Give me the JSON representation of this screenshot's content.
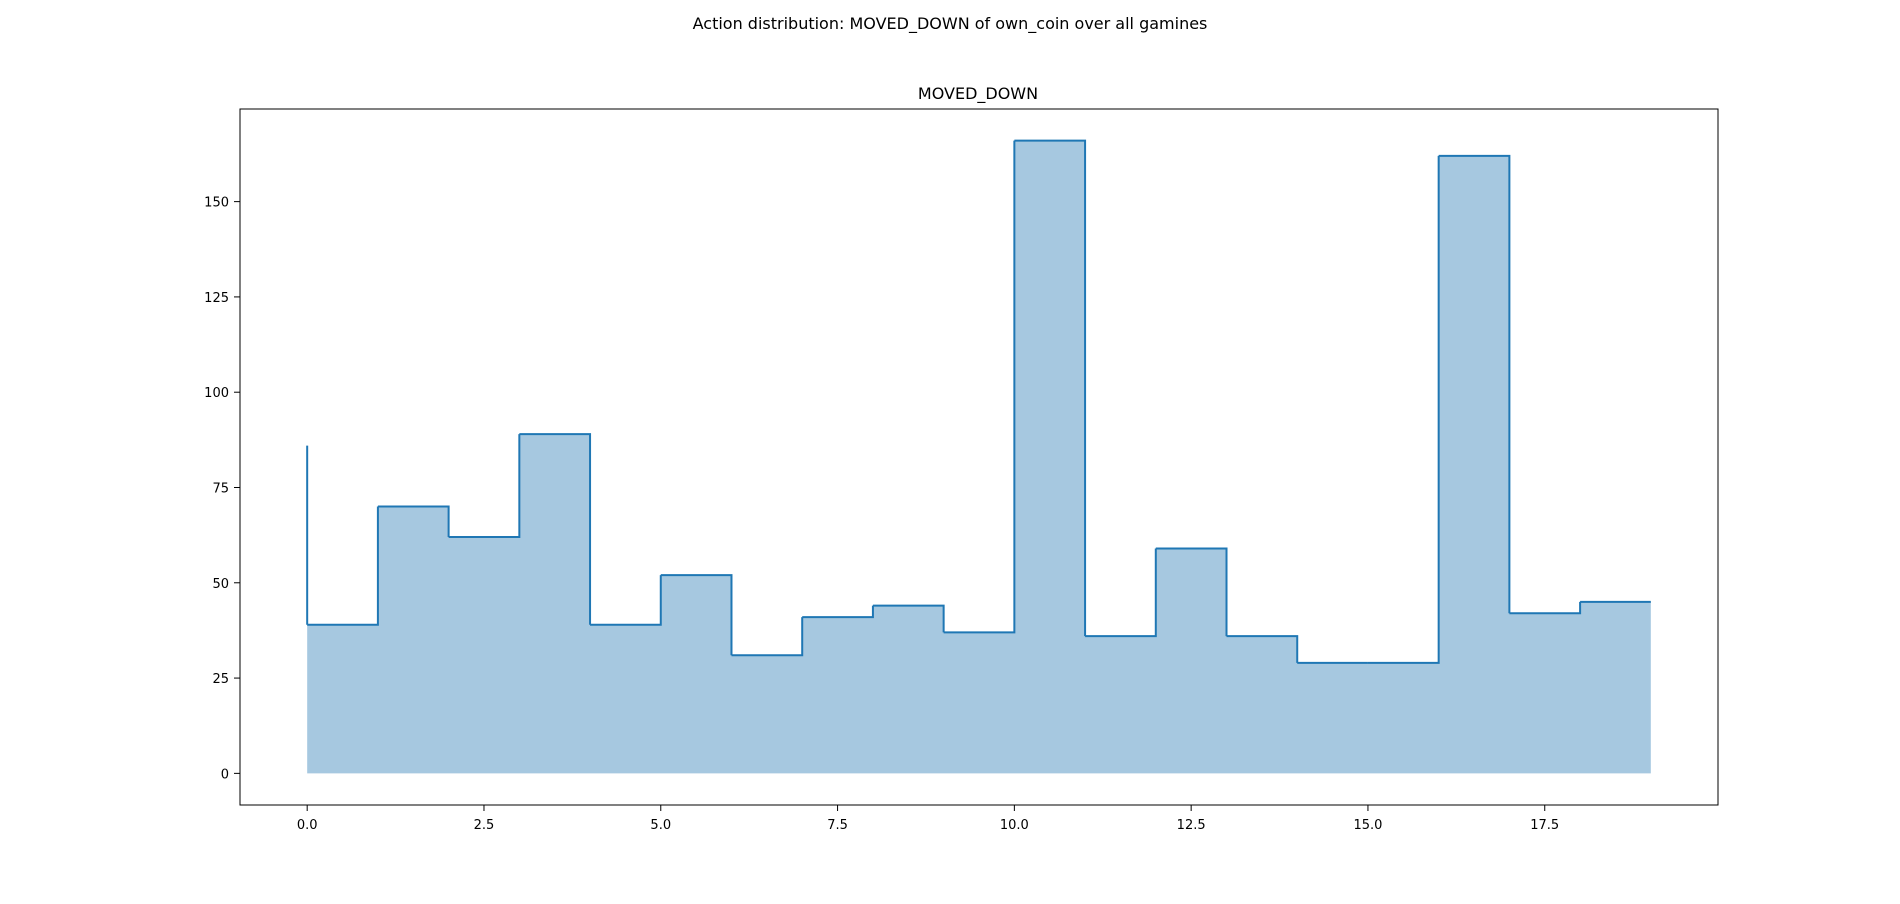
{
  "figure": {
    "suptitle": "Action distribution: MOVED_DOWN of own_coin over all gamines"
  },
  "chart_data": {
    "type": "area",
    "title": "MOVED_DOWN",
    "xlabel": "",
    "ylabel": "",
    "step": "post",
    "x": [
      0,
      1,
      2,
      3,
      4,
      5,
      6,
      7,
      8,
      9,
      10,
      11,
      12,
      13,
      14,
      15,
      16,
      17,
      18,
      19
    ],
    "values": [
      86,
      39,
      70,
      62,
      89,
      39,
      52,
      31,
      41,
      44,
      37,
      166,
      36,
      59,
      36,
      29,
      29,
      162,
      42,
      45
    ],
    "fill_from": 0,
    "xlim": [
      -0.95,
      19.95
    ],
    "ylim": [
      -8.3,
      174.3
    ],
    "xticks": [
      0.0,
      2.5,
      5.0,
      7.5,
      10.0,
      12.5,
      15.0,
      17.5
    ],
    "xtick_labels": [
      "0.0",
      "2.5",
      "5.0",
      "7.5",
      "10.0",
      "12.5",
      "15.0",
      "17.5"
    ],
    "yticks": [
      0,
      25,
      50,
      75,
      100,
      125,
      150
    ],
    "ytick_labels": [
      "0",
      "25",
      "50",
      "75",
      "100",
      "125",
      "150"
    ],
    "grid": false,
    "legend": "none",
    "colors": {
      "line": "#1f77b4",
      "fill": "#a6c8e0"
    }
  }
}
